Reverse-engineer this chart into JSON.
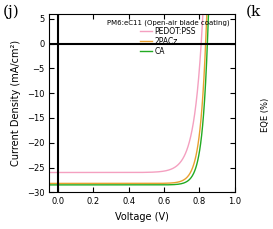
{
  "title_label": "(j)",
  "xlabel": "Voltage (V)",
  "ylabel": "Current Density (mA/cm²)",
  "xlim": [
    -0.05,
    1.0
  ],
  "ylim": [
    -30,
    6
  ],
  "yticks": [
    5,
    0,
    -5,
    -10,
    -15,
    -20,
    -25,
    -30
  ],
  "xticks": [
    0.0,
    0.2,
    0.4,
    0.6,
    0.8,
    1.0
  ],
  "legend_title": "PM6:eC11 (Open-air blade coating)",
  "series": [
    {
      "label": "PEDOT:PSS",
      "color": "#f4a0c0",
      "jsc": -26.0,
      "voc": 0.81,
      "n_ideal": 1.8
    },
    {
      "label": "2PACz",
      "color": "#e8a030",
      "jsc": -28.2,
      "voc": 0.835,
      "n_ideal": 1.3
    },
    {
      "label": "CA",
      "color": "#22aa22",
      "jsc": -28.5,
      "voc": 0.845,
      "n_ideal": 1.2
    }
  ],
  "background_color": "#ffffff",
  "figsize": [
    2.73,
    2.29
  ],
  "dpi": 100,
  "right_label": "(k",
  "right_ylabel": "EQE (%)"
}
